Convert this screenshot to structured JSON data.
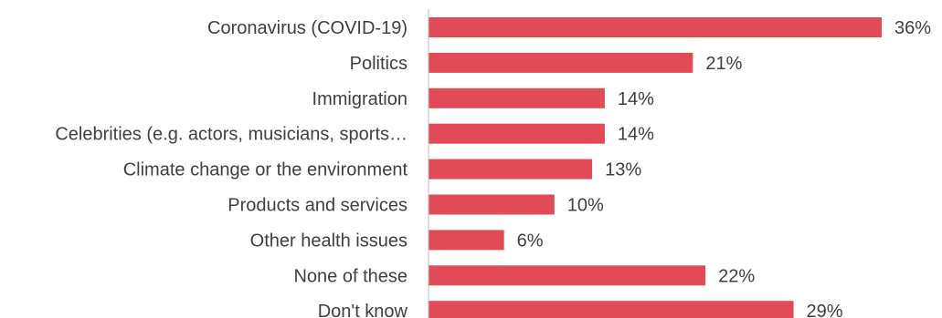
{
  "chart_data": {
    "type": "bar",
    "orientation": "horizontal",
    "categories": [
      "Coronavirus (COVID-19)",
      "Politics",
      "Immigration",
      "Celebrities (e.g. actors, musicians, sports…",
      "Climate change or the environment",
      "Products and services",
      "Other health issues",
      "None of these",
      "Don't know"
    ],
    "values": [
      36,
      21,
      14,
      14,
      13,
      10,
      6,
      22,
      29
    ],
    "value_labels": [
      "36%",
      "21%",
      "14%",
      "14%",
      "13%",
      "10%",
      "6%",
      "22%",
      "29%"
    ],
    "bar_color": "#e04b57",
    "xlim": [
      0,
      36
    ],
    "grid": false,
    "legend": "none"
  }
}
